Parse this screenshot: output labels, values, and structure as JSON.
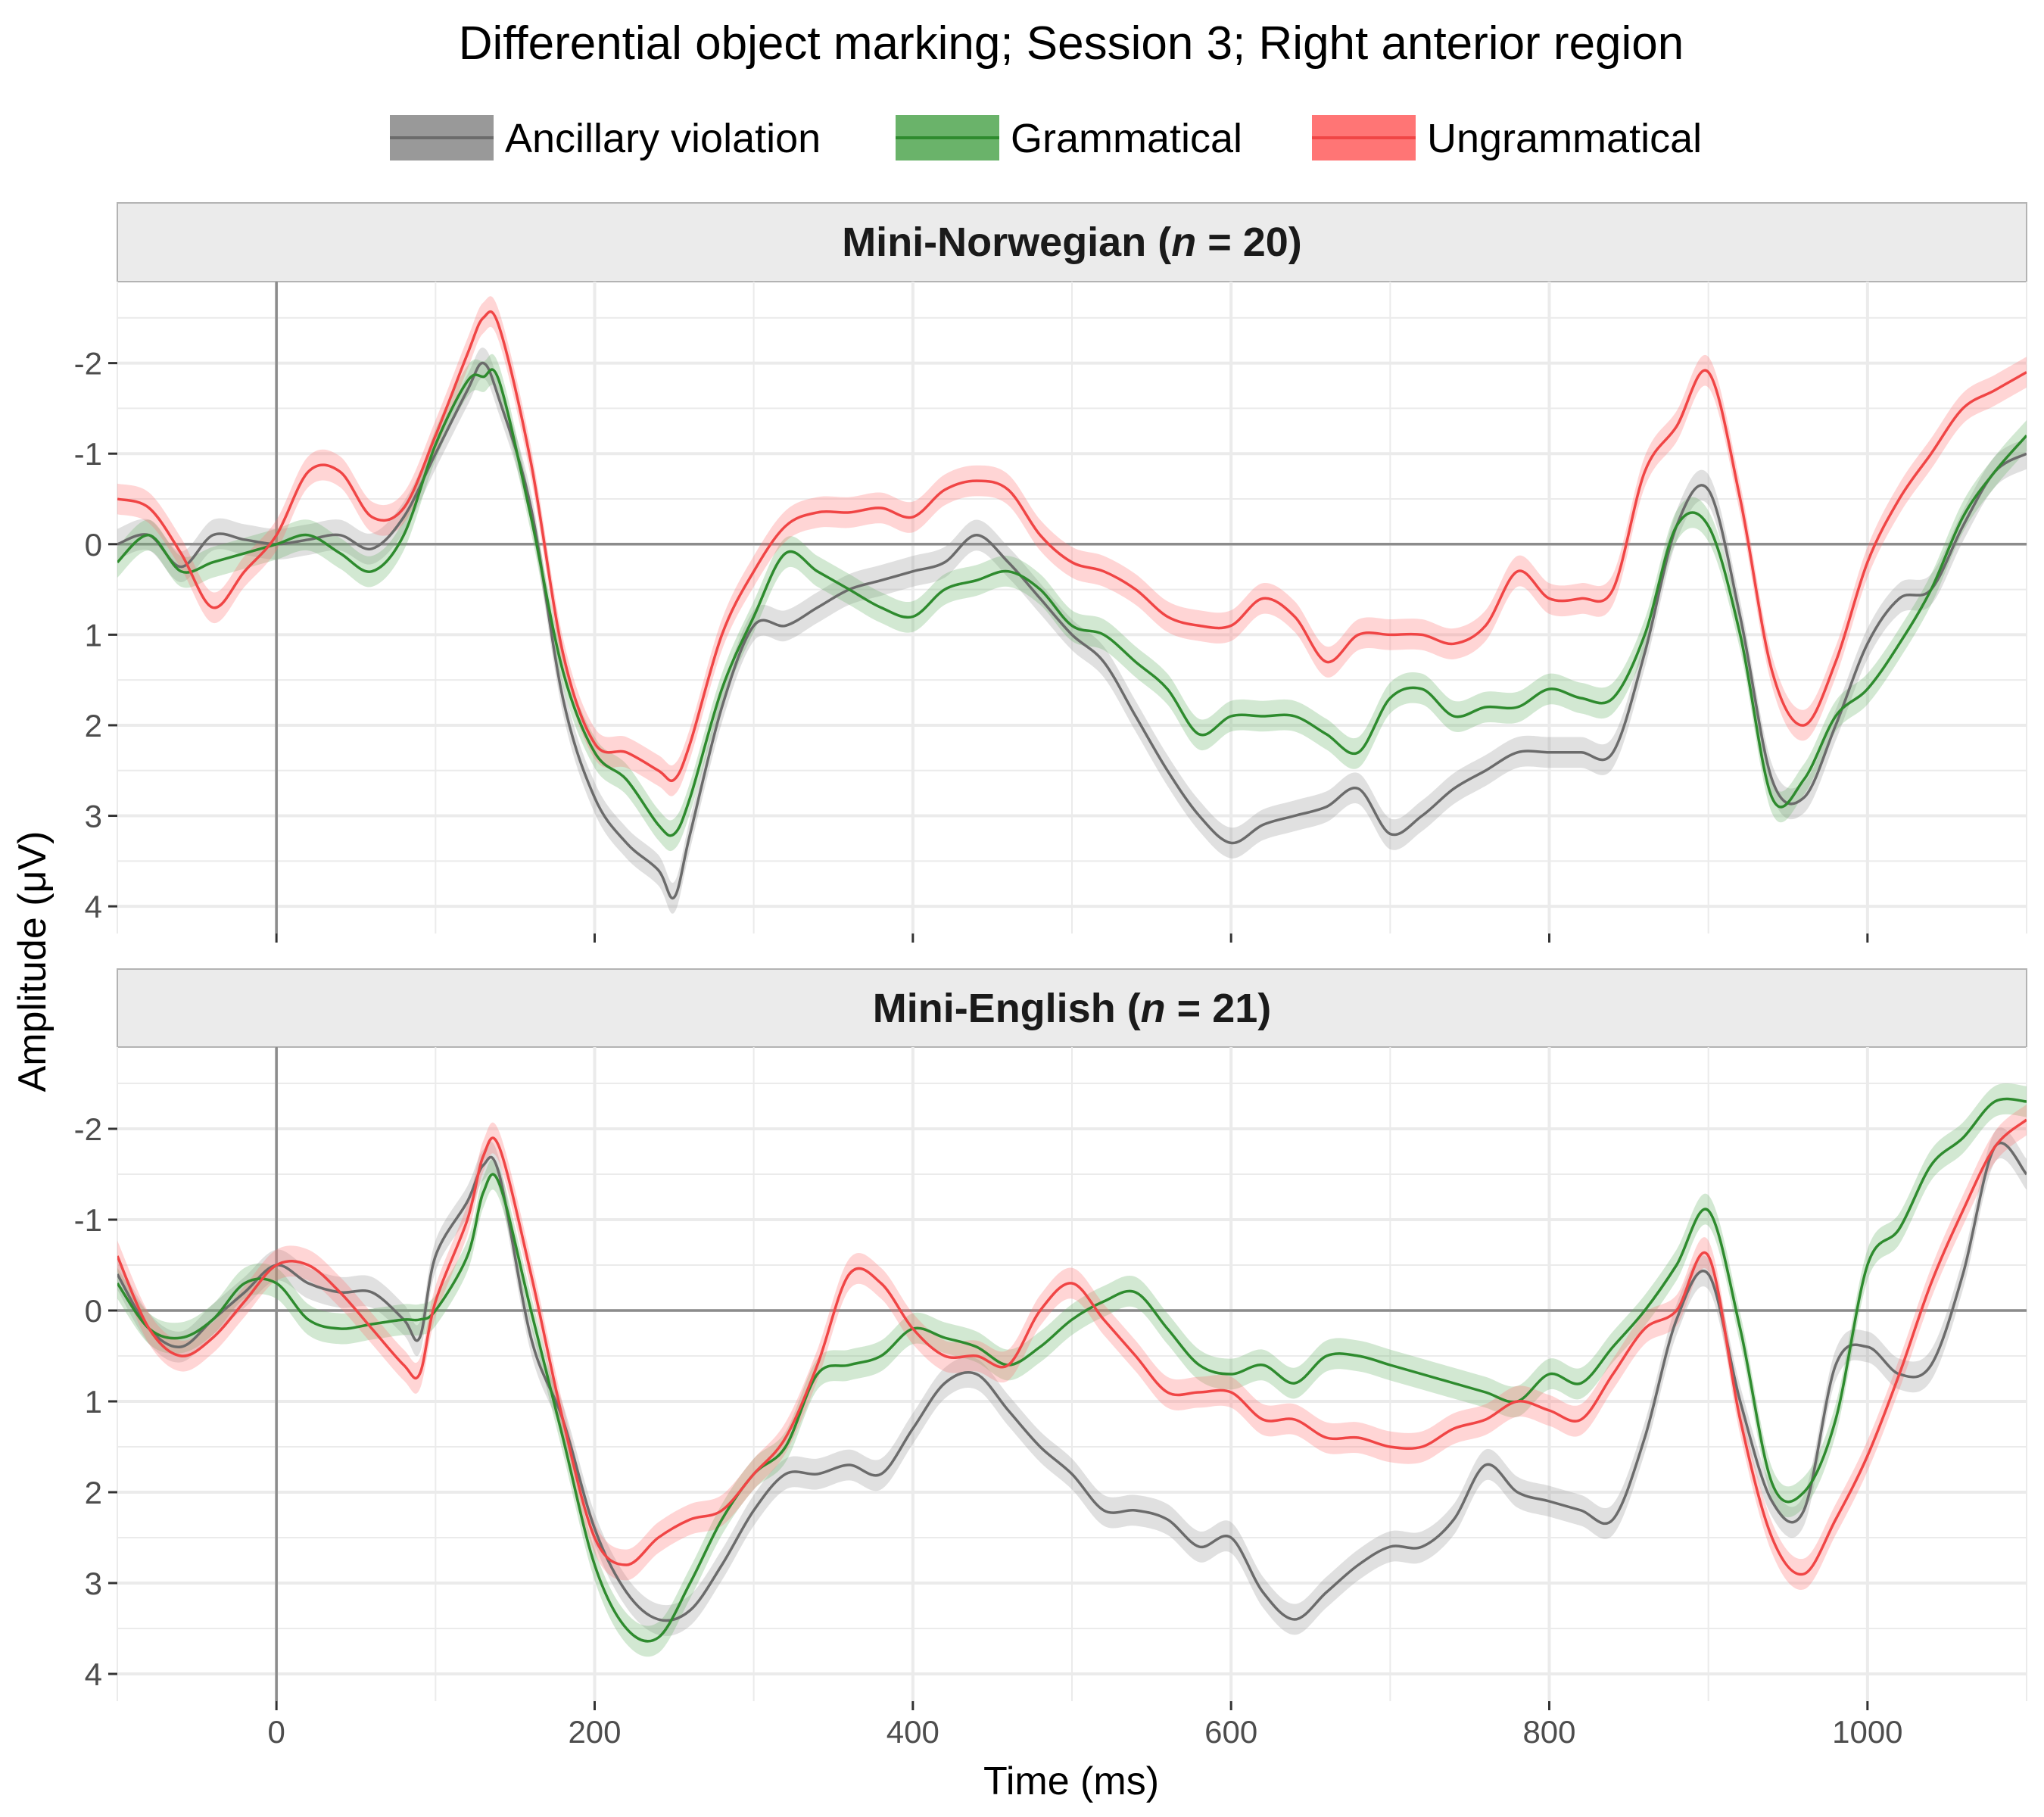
{
  "chart_data": {
    "type": "line",
    "title": "Differential object marking; Session 3; Right anterior region",
    "xlabel": "Time (ms)",
    "ylabel": "Amplitude (μV)",
    "xlim": [
      -100,
      1100
    ],
    "ylim": [
      -2.9,
      4.3
    ],
    "y_reversed": true,
    "x_ticks": [
      0,
      200,
      400,
      600,
      800,
      1000
    ],
    "y_ticks": [
      -2,
      -1,
      0,
      1,
      2,
      3,
      4
    ],
    "y_tick_labels": [
      "-2",
      "-1",
      "0",
      "1",
      "2",
      "3",
      "4"
    ],
    "grid": true,
    "ribbon_halfwidth": 0.17,
    "legend": {
      "position": "top",
      "entries": [
        {
          "name": "Ancillary violation",
          "line": "#6b6b6b",
          "fill": "#999999"
        },
        {
          "name": "Grammatical",
          "line": "#2e8b2e",
          "fill": "#6ab36a"
        },
        {
          "name": "Ungrammatical",
          "line": "#f04545",
          "fill": "#ff7575"
        }
      ]
    },
    "panels": [
      {
        "strip_name": "Mini-Norwegian",
        "strip_n": "n",
        "strip_eq": " = 20",
        "x": [
          -100,
          -80,
          -60,
          -40,
          -20,
          0,
          20,
          40,
          60,
          80,
          100,
          120,
          130,
          140,
          160,
          180,
          200,
          220,
          240,
          250,
          260,
          280,
          300,
          320,
          340,
          360,
          380,
          400,
          420,
          440,
          460,
          480,
          500,
          520,
          540,
          560,
          580,
          600,
          620,
          640,
          660,
          680,
          700,
          720,
          740,
          760,
          780,
          800,
          820,
          840,
          860,
          880,
          900,
          920,
          940,
          960,
          980,
          1000,
          1020,
          1040,
          1060,
          1080,
          1100
        ],
        "series": [
          {
            "name": "Ancillary violation",
            "values": [
              0.0,
              -0.1,
              0.25,
              -0.1,
              -0.05,
              0.0,
              -0.05,
              -0.1,
              0.05,
              -0.3,
              -1.0,
              -1.7,
              -2.0,
              -1.6,
              -0.4,
              1.7,
              2.8,
              3.3,
              3.6,
              3.9,
              3.2,
              1.8,
              0.9,
              0.9,
              0.7,
              0.5,
              0.4,
              0.3,
              0.2,
              -0.1,
              0.2,
              0.6,
              1.0,
              1.3,
              1.9,
              2.5,
              3.0,
              3.3,
              3.1,
              3.0,
              2.9,
              2.7,
              3.2,
              3.0,
              2.7,
              2.5,
              2.3,
              2.3,
              2.3,
              2.3,
              1.2,
              -0.2,
              -0.6,
              0.8,
              2.6,
              2.8,
              2.0,
              1.1,
              0.6,
              0.5,
              -0.2,
              -0.8,
              -1.0
            ]
          },
          {
            "name": "Grammatical",
            "values": [
              0.2,
              -0.1,
              0.3,
              0.2,
              0.1,
              0.0,
              -0.1,
              0.1,
              0.3,
              -0.1,
              -1.1,
              -1.8,
              -1.85,
              -1.8,
              -0.3,
              1.4,
              2.3,
              2.6,
              3.1,
              3.2,
              2.8,
              1.6,
              0.8,
              0.1,
              0.3,
              0.5,
              0.7,
              0.8,
              0.5,
              0.4,
              0.3,
              0.5,
              0.9,
              1.0,
              1.3,
              1.6,
              2.1,
              1.9,
              1.9,
              1.9,
              2.1,
              2.3,
              1.7,
              1.6,
              1.9,
              1.8,
              1.8,
              1.6,
              1.7,
              1.7,
              1.0,
              -0.2,
              -0.2,
              1.0,
              2.8,
              2.6,
              1.9,
              1.6,
              1.1,
              0.5,
              -0.3,
              -0.8,
              -1.2
            ]
          },
          {
            "name": "Ungrammatical",
            "values": [
              -0.5,
              -0.4,
              0.1,
              0.7,
              0.3,
              -0.1,
              -0.8,
              -0.8,
              -0.3,
              -0.4,
              -1.2,
              -2.1,
              -2.5,
              -2.4,
              -0.9,
              1.2,
              2.2,
              2.3,
              2.5,
              2.6,
              2.2,
              1.0,
              0.3,
              -0.2,
              -0.35,
              -0.35,
              -0.4,
              -0.3,
              -0.6,
              -0.7,
              -0.6,
              -0.1,
              0.2,
              0.3,
              0.5,
              0.8,
              0.9,
              0.9,
              0.6,
              0.8,
              1.3,
              1.0,
              1.0,
              1.0,
              1.1,
              0.9,
              0.3,
              0.6,
              0.6,
              0.5,
              -0.8,
              -1.3,
              -1.9,
              -0.5,
              1.4,
              2.0,
              1.3,
              0.2,
              -0.5,
              -1.0,
              -1.5,
              -1.7,
              -1.9
            ]
          }
        ]
      },
      {
        "strip_name": "Mini-English",
        "strip_n": "n",
        "strip_eq": " = 21",
        "x": [
          -100,
          -80,
          -60,
          -40,
          -20,
          0,
          20,
          40,
          60,
          80,
          90,
          100,
          120,
          130,
          140,
          160,
          180,
          200,
          220,
          240,
          260,
          280,
          300,
          320,
          340,
          360,
          380,
          400,
          420,
          440,
          460,
          480,
          500,
          520,
          540,
          560,
          580,
          600,
          620,
          640,
          660,
          680,
          700,
          720,
          740,
          760,
          780,
          800,
          820,
          840,
          860,
          880,
          900,
          920,
          940,
          960,
          980,
          1000,
          1020,
          1040,
          1060,
          1080,
          1100
        ],
        "series": [
          {
            "name": "Ancillary violation",
            "values": [
              -0.4,
              0.2,
              0.4,
              0.1,
              -0.2,
              -0.5,
              -0.3,
              -0.2,
              -0.2,
              0.1,
              0.3,
              -0.6,
              -1.2,
              -1.6,
              -1.5,
              0.3,
              1.2,
              2.4,
              3.1,
              3.4,
              3.3,
              2.8,
              2.2,
              1.8,
              1.8,
              1.7,
              1.8,
              1.3,
              0.8,
              0.7,
              1.1,
              1.5,
              1.8,
              2.2,
              2.2,
              2.3,
              2.6,
              2.5,
              3.1,
              3.4,
              3.1,
              2.8,
              2.6,
              2.6,
              2.3,
              1.7,
              2.0,
              2.1,
              2.2,
              2.3,
              1.4,
              0.1,
              -0.4,
              1.0,
              2.1,
              2.2,
              0.6,
              0.4,
              0.7,
              0.6,
              -0.4,
              -1.8,
              -1.5
            ]
          },
          {
            "name": "Grammatical",
            "values": [
              -0.3,
              0.2,
              0.3,
              0.1,
              -0.3,
              -0.3,
              0.1,
              0.2,
              0.15,
              0.1,
              0.1,
              0.0,
              -0.6,
              -1.3,
              -1.4,
              0.0,
              1.4,
              2.8,
              3.5,
              3.6,
              3.0,
              2.3,
              1.8,
              1.5,
              0.7,
              0.6,
              0.5,
              0.2,
              0.3,
              0.4,
              0.6,
              0.4,
              0.1,
              -0.1,
              -0.2,
              0.2,
              0.6,
              0.7,
              0.6,
              0.8,
              0.5,
              0.5,
              0.6,
              0.7,
              0.8,
              0.9,
              1.0,
              0.7,
              0.8,
              0.4,
              0.0,
              -0.5,
              -1.1,
              0.2,
              1.9,
              2.0,
              1.2,
              -0.5,
              -0.9,
              -1.6,
              -1.9,
              -2.3,
              -2.3
            ]
          },
          {
            "name": "Ungrammatical",
            "values": [
              -0.6,
              0.2,
              0.5,
              0.3,
              -0.1,
              -0.5,
              -0.5,
              -0.2,
              0.2,
              0.6,
              0.7,
              -0.1,
              -1.0,
              -1.7,
              -1.8,
              -0.4,
              1.2,
              2.5,
              2.8,
              2.5,
              2.3,
              2.2,
              1.8,
              1.4,
              0.6,
              -0.4,
              -0.3,
              0.2,
              0.5,
              0.5,
              0.6,
              0.0,
              -0.3,
              0.1,
              0.5,
              0.9,
              0.9,
              0.9,
              1.2,
              1.2,
              1.4,
              1.4,
              1.5,
              1.5,
              1.3,
              1.2,
              1.0,
              1.1,
              1.2,
              0.7,
              0.2,
              0.0,
              -0.6,
              1.2,
              2.5,
              2.9,
              2.3,
              1.6,
              0.7,
              -0.3,
              -1.1,
              -1.8,
              -2.1
            ]
          }
        ]
      }
    ]
  }
}
